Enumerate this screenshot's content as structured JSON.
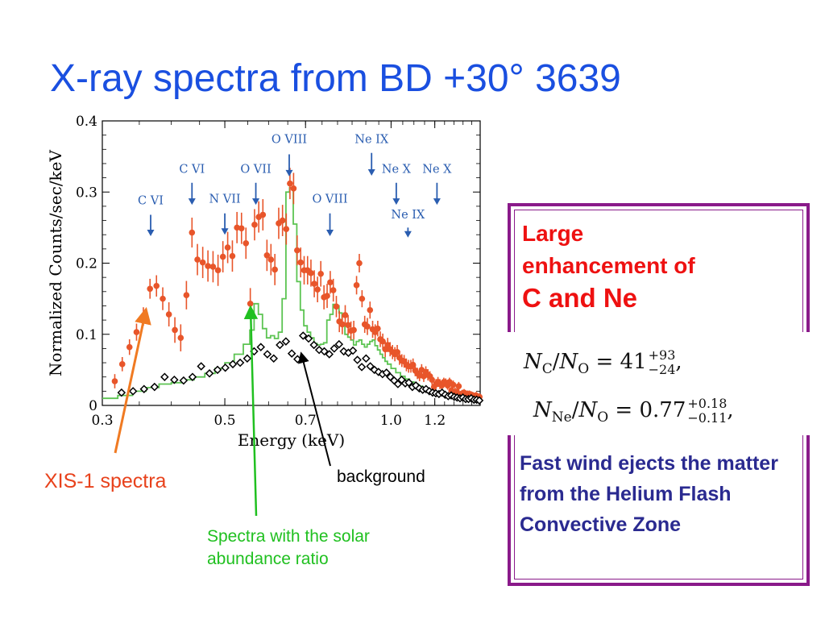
{
  "slide_title": "X-ray spectra from BD +30°  3639",
  "captions": {
    "xis": "XIS-1 spectra",
    "background": "background",
    "solar": "Spectra with the solar abundance ratio"
  },
  "note": {
    "head1": "Large",
    "head2": "enhancement of",
    "head3": "C and Ne",
    "eq1": {
      "lhs": "N",
      "sub1": "C",
      "slash": "/",
      "sub2": "O",
      "value": "41",
      "sup": "+93",
      "low": "−24",
      "tail": ","
    },
    "eq2": {
      "lhs": "N",
      "sub1": "Ne",
      "slash": "/",
      "sub2": "O",
      "value": "0.77",
      "sup": "+0.18",
      "low": "−0.11",
      "tail": ","
    },
    "body": "Fast wind ejects the matter from the Helium Flash Convective Zone"
  },
  "colors": {
    "title": "#1a4fe0",
    "xis": "#e8421c",
    "solar": "#20c020",
    "background": "#000000",
    "line_label": "#2a5db0",
    "box": "#8a1a8a"
  },
  "chart_data": {
    "type": "scatter",
    "xlabel": "Energy (keV)",
    "ylabel": "Normalized Counts/sec/keV",
    "xscale": "log",
    "xlim": [
      0.3,
      1.45
    ],
    "ylim": [
      0,
      0.4
    ],
    "xticks": [
      {
        "v": 0.3,
        "label": "0.3"
      },
      {
        "v": 0.5,
        "label": "0.5"
      },
      {
        "v": 0.7,
        "label": "0.7"
      },
      {
        "v": 1.0,
        "label": "1.0"
      },
      {
        "v": 1.2,
        "label": "1.2"
      }
    ],
    "yticks": [
      {
        "v": 0,
        "label": "0"
      },
      {
        "v": 0.1,
        "label": "0.1"
      },
      {
        "v": 0.2,
        "label": "0.2"
      },
      {
        "v": 0.3,
        "label": "0.3"
      },
      {
        "v": 0.4,
        "label": "0.4"
      }
    ],
    "line_markers": [
      {
        "label": "C VI",
        "x": 0.367,
        "label_y": 0.283,
        "arrow": [
          0.268,
          0.238
        ]
      },
      {
        "label": "C VI",
        "x": 0.436,
        "label_y": 0.327,
        "arrow": [
          0.313,
          0.282
        ]
      },
      {
        "label": "N VII",
        "x": 0.5,
        "label_y": 0.285,
        "arrow": [
          0.27,
          0.24
        ]
      },
      {
        "label": "O VII",
        "x": 0.569,
        "label_y": 0.327,
        "arrow": [
          0.313,
          0.282
        ]
      },
      {
        "label": "O VIII",
        "x": 0.654,
        "label_y": 0.369,
        "arrow": [
          0.353,
          0.322
        ]
      },
      {
        "label": "O VIII",
        "x": 0.775,
        "label_y": 0.285,
        "arrow": [
          0.27,
          0.238
        ]
      },
      {
        "label": "Ne IX",
        "x": 0.922,
        "label_y": 0.369,
        "arrow": [
          0.355,
          0.323
        ]
      },
      {
        "label": "Ne X",
        "x": 1.022,
        "label_y": 0.327,
        "arrow": [
          0.313,
          0.282
        ]
      },
      {
        "label": "Ne X",
        "x": 1.211,
        "label_y": 0.327,
        "arrow": [
          0.313,
          0.282
        ]
      },
      {
        "label": "Ne IX",
        "x": 1.073,
        "label_y": 0.263,
        "arrow": [
          0.25,
          0.236
        ]
      }
    ],
    "series": [
      {
        "name": "XIS-1 spectra",
        "style": "points_with_errorbars",
        "x": [
          0.316,
          0.326,
          0.336,
          0.346,
          0.356,
          0.366,
          0.376,
          0.386,
          0.396,
          0.406,
          0.416,
          0.426,
          0.436,
          0.446,
          0.456,
          0.466,
          0.476,
          0.486,
          0.496,
          0.506,
          0.516,
          0.526,
          0.536,
          0.546,
          0.556,
          0.566,
          0.576,
          0.586,
          0.596,
          0.606,
          0.616,
          0.626,
          0.636,
          0.646,
          0.656,
          0.666,
          0.676,
          0.686,
          0.696,
          0.706,
          0.716,
          0.726,
          0.736,
          0.746,
          0.756,
          0.766,
          0.776,
          0.786,
          0.796,
          0.806,
          0.816,
          0.826,
          0.836,
          0.846,
          0.856,
          0.866,
          0.876,
          0.886,
          0.896,
          0.906,
          0.916,
          0.926,
          0.936,
          0.946,
          0.956,
          0.966,
          0.976,
          0.986,
          0.996,
          1.006,
          1.016,
          1.026,
          1.036,
          1.046,
          1.056,
          1.066,
          1.076,
          1.086,
          1.096,
          1.106,
          1.116,
          1.126,
          1.136,
          1.146,
          1.156,
          1.166,
          1.176,
          1.186,
          1.196,
          1.206,
          1.216,
          1.226,
          1.236,
          1.246,
          1.256,
          1.266,
          1.276,
          1.286,
          1.296,
          1.306,
          1.316,
          1.326,
          1.336,
          1.346,
          1.356,
          1.366,
          1.376,
          1.386,
          1.396,
          1.406,
          1.416,
          1.426,
          1.436,
          1.446
        ],
        "y": [
          0.034,
          0.058,
          0.082,
          0.103,
          0.125,
          0.164,
          0.168,
          0.15,
          0.128,
          0.106,
          0.095,
          0.155,
          0.243,
          0.205,
          0.201,
          0.196,
          0.195,
          0.19,
          0.209,
          0.222,
          0.21,
          0.25,
          0.249,
          0.228,
          0.143,
          0.254,
          0.265,
          0.268,
          0.211,
          0.205,
          0.191,
          0.256,
          0.26,
          0.248,
          0.312,
          0.305,
          0.218,
          0.201,
          0.19,
          0.19,
          0.186,
          0.171,
          0.163,
          0.185,
          0.152,
          0.154,
          0.173,
          0.162,
          0.139,
          0.118,
          0.114,
          0.127,
          0.113,
          0.105,
          0.106,
          0.169,
          0.2,
          0.15,
          0.114,
          0.111,
          0.134,
          0.107,
          0.103,
          0.108,
          0.093,
          0.09,
          0.079,
          0.085,
          0.079,
          0.075,
          0.072,
          0.075,
          0.067,
          0.063,
          0.062,
          0.057,
          0.055,
          0.055,
          0.057,
          0.049,
          0.045,
          0.042,
          0.05,
          0.041,
          0.047,
          0.043,
          0.041,
          0.036,
          0.026,
          0.03,
          0.033,
          0.03,
          0.028,
          0.033,
          0.032,
          0.028,
          0.033,
          0.021,
          0.029,
          0.019,
          0.019,
          0.027,
          0.015,
          0.017,
          0.018,
          0.015,
          0.016,
          0.016,
          0.015,
          0.014,
          0.013,
          0.014,
          0.01,
          0.012
        ],
        "err": [
          0.01,
          0.01,
          0.011,
          0.012,
          0.013,
          0.014,
          0.015,
          0.016,
          0.017,
          0.018,
          0.019,
          0.02,
          0.021,
          0.022,
          0.022,
          0.022,
          0.022,
          0.022,
          0.022,
          0.022,
          0.022,
          0.022,
          0.022,
          0.022,
          0.022,
          0.022,
          0.022,
          0.022,
          0.022,
          0.022,
          0.022,
          0.022,
          0.022,
          0.022,
          0.022,
          0.022,
          0.021,
          0.021,
          0.02,
          0.02,
          0.019,
          0.019,
          0.018,
          0.018,
          0.017,
          0.017,
          0.016,
          0.016,
          0.015,
          0.015,
          0.014,
          0.014,
          0.014,
          0.013,
          0.013,
          0.013,
          0.013,
          0.012,
          0.012,
          0.012,
          0.012,
          0.012,
          0.011,
          0.011,
          0.011,
          0.011,
          0.011,
          0.01,
          0.01,
          0.01,
          0.01,
          0.01,
          0.01,
          0.009,
          0.009,
          0.009,
          0.009,
          0.009,
          0.009,
          0.008,
          0.008,
          0.008,
          0.008,
          0.008,
          0.008,
          0.008,
          0.007,
          0.007,
          0.007,
          0.007,
          0.007,
          0.007,
          0.007,
          0.006,
          0.006,
          0.006,
          0.006,
          0.006,
          0.006,
          0.006,
          0.006,
          0.006,
          0.005,
          0.005,
          0.005,
          0.005,
          0.005,
          0.005,
          0.005,
          0.005,
          0.005,
          0.005,
          0.005,
          0.005
        ]
      },
      {
        "name": "Spectra with the solar abundance ratio",
        "style": "step",
        "x": [
          0.3,
          0.32,
          0.34,
          0.36,
          0.38,
          0.4,
          0.42,
          0.44,
          0.46,
          0.48,
          0.5,
          0.52,
          0.54,
          0.555,
          0.565,
          0.575,
          0.585,
          0.595,
          0.605,
          0.615,
          0.625,
          0.635,
          0.645,
          0.655,
          0.665,
          0.675,
          0.685,
          0.695,
          0.705,
          0.715,
          0.725,
          0.735,
          0.745,
          0.755,
          0.765,
          0.775,
          0.785,
          0.795,
          0.805,
          0.815,
          0.825,
          0.835,
          0.845,
          0.855,
          0.865,
          0.875,
          0.885,
          0.895,
          0.905,
          0.915,
          0.925,
          0.935,
          0.945,
          0.955,
          0.965,
          0.975,
          0.985,
          1.0,
          1.02,
          1.04,
          1.06,
          1.08,
          1.1,
          1.12,
          1.14,
          1.16,
          1.18,
          1.2,
          1.22,
          1.24,
          1.26,
          1.28,
          1.3,
          1.32,
          1.34,
          1.36,
          1.38,
          1.4,
          1.42,
          1.44
        ],
        "y": [
          0.01,
          0.014,
          0.02,
          0.025,
          0.03,
          0.032,
          0.036,
          0.04,
          0.045,
          0.052,
          0.06,
          0.072,
          0.086,
          0.106,
          0.143,
          0.128,
          0.108,
          0.095,
          0.098,
          0.094,
          0.103,
          0.15,
          0.3,
          0.306,
          0.255,
          0.174,
          0.134,
          0.112,
          0.103,
          0.095,
          0.087,
          0.085,
          0.086,
          0.088,
          0.12,
          0.128,
          0.142,
          0.14,
          0.13,
          0.115,
          0.1,
          0.096,
          0.092,
          0.085,
          0.09,
          0.092,
          0.086,
          0.082,
          0.086,
          0.09,
          0.092,
          0.084,
          0.078,
          0.072,
          0.067,
          0.062,
          0.058,
          0.052,
          0.046,
          0.041,
          0.037,
          0.033,
          0.03,
          0.027,
          0.024,
          0.022,
          0.02,
          0.018,
          0.016,
          0.015,
          0.014,
          0.013,
          0.012,
          0.011,
          0.01,
          0.01,
          0.009,
          0.009,
          0.008,
          0.008
        ]
      },
      {
        "name": "background",
        "style": "open_diamonds",
        "x": [
          0.325,
          0.341,
          0.357,
          0.373,
          0.389,
          0.405,
          0.421,
          0.437,
          0.453,
          0.469,
          0.485,
          0.501,
          0.517,
          0.533,
          0.549,
          0.565,
          0.581,
          0.597,
          0.613,
          0.629,
          0.645,
          0.661,
          0.677,
          0.693,
          0.709,
          0.725,
          0.741,
          0.757,
          0.773,
          0.789,
          0.805,
          0.821,
          0.837,
          0.853,
          0.869,
          0.885,
          0.901,
          0.917,
          0.933,
          0.949,
          0.965,
          0.981,
          0.997,
          1.013,
          1.029,
          1.045,
          1.061,
          1.077,
          1.093,
          1.109,
          1.125,
          1.141,
          1.157,
          1.173,
          1.189,
          1.205,
          1.221,
          1.237,
          1.253,
          1.269,
          1.285,
          1.301,
          1.317,
          1.333,
          1.349,
          1.365,
          1.381,
          1.397,
          1.413,
          1.429,
          1.445
        ],
        "y": [
          0.018,
          0.02,
          0.023,
          0.026,
          0.04,
          0.036,
          0.035,
          0.04,
          0.055,
          0.045,
          0.05,
          0.053,
          0.058,
          0.06,
          0.066,
          0.076,
          0.082,
          0.072,
          0.066,
          0.085,
          0.09,
          0.073,
          0.065,
          0.098,
          0.094,
          0.085,
          0.078,
          0.076,
          0.072,
          0.08,
          0.086,
          0.076,
          0.074,
          0.077,
          0.064,
          0.054,
          0.066,
          0.055,
          0.05,
          0.047,
          0.044,
          0.046,
          0.04,
          0.035,
          0.03,
          0.036,
          0.031,
          0.032,
          0.026,
          0.028,
          0.024,
          0.022,
          0.023,
          0.02,
          0.018,
          0.017,
          0.016,
          0.018,
          0.015,
          0.013,
          0.014,
          0.012,
          0.011,
          0.01,
          0.011,
          0.009,
          0.009,
          0.01,
          0.008,
          0.008,
          0.007
        ]
      }
    ]
  }
}
